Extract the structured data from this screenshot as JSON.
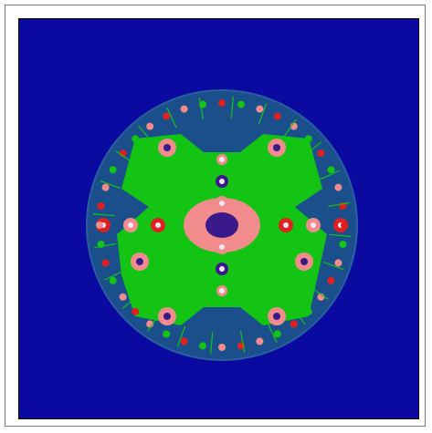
{
  "window": {
    "title": ""
  },
  "image": {
    "kind": "fractal-rendering",
    "colors": {
      "background": "#0a0aa0",
      "disk": "#1b4f8c",
      "disk_edge": "#2a5f9e",
      "green": "#14c414",
      "pink": "#f28c8c",
      "red": "#e02020",
      "purple": "#3a1a8a",
      "white": "#f4e6f4"
    }
  }
}
